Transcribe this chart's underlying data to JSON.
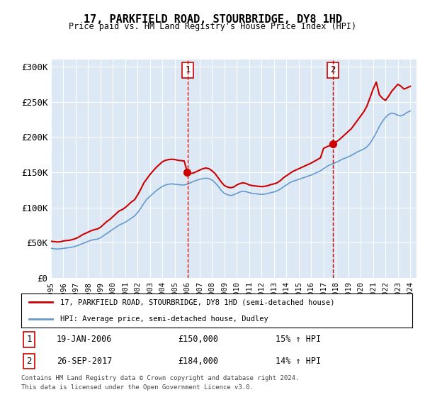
{
  "title": "17, PARKFIELD ROAD, STOURBRIDGE, DY8 1HD",
  "subtitle": "Price paid vs. HM Land Registry's House Price Index (HPI)",
  "background_color": "#dce9f5",
  "plot_bg_color": "#dce9f5",
  "ylabel_ticks": [
    "£0",
    "£50K",
    "£100K",
    "£150K",
    "£200K",
    "£250K",
    "£300K"
  ],
  "ytick_vals": [
    0,
    50000,
    100000,
    150000,
    200000,
    250000,
    300000
  ],
  "ylim": [
    0,
    310000
  ],
  "xlim_start": 1995.5,
  "xlim_end": 2024.5,
  "marker1_x": 2006.05,
  "marker1_label": "1",
  "marker1_price": "£150,000",
  "marker1_date": "19-JAN-2006",
  "marker1_hpi": "15% ↑ HPI",
  "marker2_x": 2017.74,
  "marker2_label": "2",
  "marker2_price": "£184,000",
  "marker2_date": "26-SEP-2017",
  "marker2_hpi": "14% ↑ HPI",
  "legend_line1": "17, PARKFIELD ROAD, STOURBRIDGE, DY8 1HD (semi-detached house)",
  "legend_line2": "HPI: Average price, semi-detached house, Dudley",
  "footer1": "Contains HM Land Registry data © Crown copyright and database right 2024.",
  "footer2": "This data is licensed under the Open Government Licence v3.0.",
  "red_line_color": "#cc0000",
  "blue_line_color": "#6699cc",
  "hpi_years": [
    1995.0,
    1995.25,
    1995.5,
    1995.75,
    1996.0,
    1996.25,
    1996.5,
    1996.75,
    1997.0,
    1997.25,
    1997.5,
    1997.75,
    1998.0,
    1998.25,
    1998.5,
    1998.75,
    1999.0,
    1999.25,
    1999.5,
    1999.75,
    2000.0,
    2000.25,
    2000.5,
    2000.75,
    2001.0,
    2001.25,
    2001.5,
    2001.75,
    2002.0,
    2002.25,
    2002.5,
    2002.75,
    2003.0,
    2003.25,
    2003.5,
    2003.75,
    2004.0,
    2004.25,
    2004.5,
    2004.75,
    2005.0,
    2005.25,
    2005.5,
    2005.75,
    2006.0,
    2006.25,
    2006.5,
    2006.75,
    2007.0,
    2007.25,
    2007.5,
    2007.75,
    2008.0,
    2008.25,
    2008.5,
    2008.75,
    2009.0,
    2009.25,
    2009.5,
    2009.75,
    2010.0,
    2010.25,
    2010.5,
    2010.75,
    2011.0,
    2011.25,
    2011.5,
    2011.75,
    2012.0,
    2012.25,
    2012.5,
    2012.75,
    2013.0,
    2013.25,
    2013.5,
    2013.75,
    2014.0,
    2014.25,
    2014.5,
    2014.75,
    2015.0,
    2015.25,
    2015.5,
    2015.75,
    2016.0,
    2016.25,
    2016.5,
    2016.75,
    2017.0,
    2017.25,
    2017.5,
    2017.75,
    2018.0,
    2018.25,
    2018.5,
    2018.75,
    2019.0,
    2019.25,
    2019.5,
    2019.75,
    2020.0,
    2020.25,
    2020.5,
    2020.75,
    2021.0,
    2021.25,
    2021.5,
    2021.75,
    2022.0,
    2022.25,
    2022.5,
    2022.75,
    2023.0,
    2023.25,
    2023.5,
    2023.75,
    2024.0
  ],
  "hpi_vals": [
    42000,
    41500,
    41000,
    41200,
    42000,
    42500,
    43000,
    43800,
    45000,
    46500,
    48500,
    50000,
    52000,
    53500,
    54500,
    55000,
    57000,
    60000,
    63000,
    66000,
    69000,
    72000,
    75000,
    77000,
    79000,
    82000,
    85000,
    88000,
    93000,
    99000,
    106000,
    112000,
    116000,
    120000,
    124000,
    127000,
    130000,
    132000,
    133000,
    133500,
    133000,
    132500,
    132000,
    132000,
    133000,
    135000,
    137000,
    138500,
    140000,
    141000,
    141500,
    141000,
    139000,
    135000,
    130000,
    124000,
    120000,
    118000,
    117000,
    118000,
    120000,
    122000,
    123000,
    122500,
    121000,
    120000,
    119500,
    119000,
    118500,
    119000,
    120000,
    121000,
    122000,
    123500,
    126000,
    129000,
    132000,
    135000,
    137000,
    138500,
    140000,
    141500,
    143000,
    144500,
    146000,
    148000,
    150000,
    152000,
    155000,
    158000,
    160500,
    162000,
    164000,
    166000,
    168500,
    170000,
    172000,
    174000,
    176500,
    179000,
    181000,
    183000,
    186000,
    191000,
    198000,
    206000,
    215000,
    222000,
    228000,
    232000,
    234000,
    233000,
    231000,
    230000,
    232000,
    235000,
    237000
  ],
  "red_years": [
    1995.0,
    1995.25,
    1995.5,
    1995.75,
    1996.0,
    1996.25,
    1996.5,
    1996.75,
    1997.0,
    1997.25,
    1997.5,
    1997.75,
    1998.0,
    1998.25,
    1998.5,
    1998.75,
    1999.0,
    1999.25,
    1999.5,
    1999.75,
    2000.0,
    2000.25,
    2000.5,
    2000.75,
    2001.0,
    2001.25,
    2001.5,
    2001.75,
    2002.0,
    2002.25,
    2002.5,
    2002.75,
    2003.0,
    2003.25,
    2003.5,
    2003.75,
    2004.0,
    2004.25,
    2004.5,
    2004.75,
    2005.0,
    2005.25,
    2005.5,
    2005.75,
    2006.0,
    2006.25,
    2006.5,
    2006.75,
    2007.0,
    2007.25,
    2007.5,
    2007.75,
    2008.0,
    2008.25,
    2008.5,
    2008.75,
    2009.0,
    2009.25,
    2009.5,
    2009.75,
    2010.0,
    2010.25,
    2010.5,
    2010.75,
    2011.0,
    2011.25,
    2011.5,
    2011.75,
    2012.0,
    2012.25,
    2012.5,
    2012.75,
    2013.0,
    2013.25,
    2013.5,
    2013.75,
    2014.0,
    2014.25,
    2014.5,
    2014.75,
    2015.0,
    2015.25,
    2015.5,
    2015.75,
    2016.0,
    2016.25,
    2016.5,
    2016.75,
    2017.0,
    2017.25,
    2017.5,
    2017.75,
    2018.0,
    2018.25,
    2018.5,
    2018.75,
    2019.0,
    2019.25,
    2019.5,
    2019.75,
    2020.0,
    2020.25,
    2020.5,
    2020.75,
    2021.0,
    2021.25,
    2021.5,
    2021.75,
    2022.0,
    2022.25,
    2022.5,
    2022.75,
    2023.0,
    2023.25,
    2023.5,
    2023.75,
    2024.0
  ],
  "red_vals": [
    52000,
    51500,
    51000,
    51200,
    52500,
    53000,
    53500,
    54500,
    56000,
    58000,
    61000,
    63000,
    65000,
    67000,
    68500,
    69500,
    72000,
    76000,
    80000,
    83000,
    87000,
    91000,
    95000,
    97000,
    100000,
    104000,
    108000,
    111000,
    118000,
    126000,
    135000,
    141000,
    147000,
    152000,
    157000,
    161000,
    165000,
    167000,
    168000,
    168500,
    168000,
    167000,
    166500,
    166000,
    150000,
    148000,
    149000,
    151000,
    153000,
    155000,
    156000,
    155000,
    152000,
    148000,
    142000,
    136000,
    131000,
    129000,
    128000,
    129000,
    132000,
    134000,
    135000,
    134000,
    132000,
    131000,
    130500,
    130000,
    129500,
    130000,
    131000,
    132500,
    133500,
    135000,
    138000,
    142000,
    145000,
    148000,
    151000,
    153000,
    155000,
    157000,
    159000,
    161000,
    163000,
    165500,
    168000,
    170500,
    184000,
    186000,
    188000,
    190000,
    193000,
    196000,
    200000,
    204000,
    208000,
    212000,
    218000,
    224000,
    230000,
    236000,
    244000,
    256000,
    268000,
    278000,
    260000,
    255000,
    252000,
    258000,
    265000,
    270000,
    275000,
    272000,
    268000,
    270000,
    272000
  ]
}
